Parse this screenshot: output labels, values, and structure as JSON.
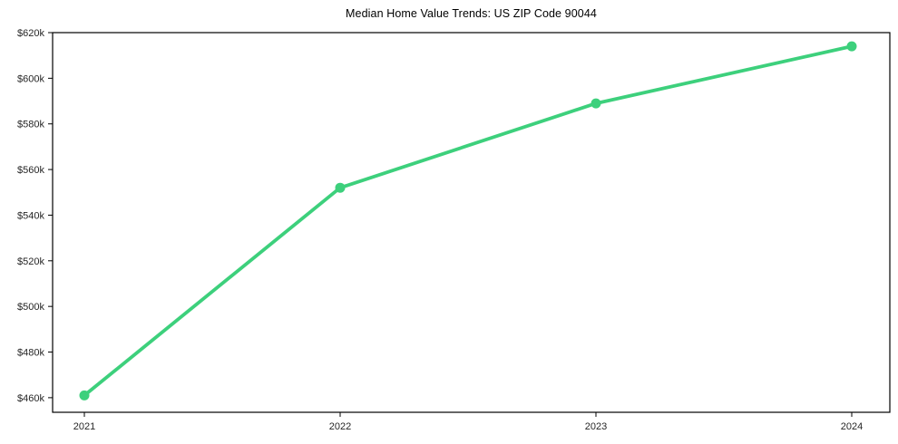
{
  "page": {
    "background_color": "#ffffff"
  },
  "chart_data": {
    "type": "line",
    "title": "Median Home Value Trends: US ZIP Code 90044",
    "categories": [
      "2021",
      "2022",
      "2023",
      "2024"
    ],
    "values": [
      461000,
      552000,
      589000,
      614000
    ],
    "value_labels": [
      "$461k",
      "$552k",
      "$589k",
      "$614k"
    ],
    "xlabel": "",
    "ylabel": "",
    "ytick_values": [
      460000,
      480000,
      500000,
      520000,
      540000,
      560000,
      580000,
      600000,
      620000
    ],
    "ytick_labels": [
      "$460k",
      "$480k",
      "$500k",
      "$520k",
      "$540k",
      "$560k",
      "$580k",
      "$600k",
      "$620k"
    ],
    "ylim": [
      453600,
      620000
    ],
    "grid": false,
    "legend_position": "none",
    "line_color": "#3dd07c",
    "marker_color": "#3dd07c",
    "marker_shape": "circle",
    "axis_color": "#000000",
    "tick_text_color": "#262626",
    "title_color": "#000000",
    "background_color": "#ffffff"
  }
}
